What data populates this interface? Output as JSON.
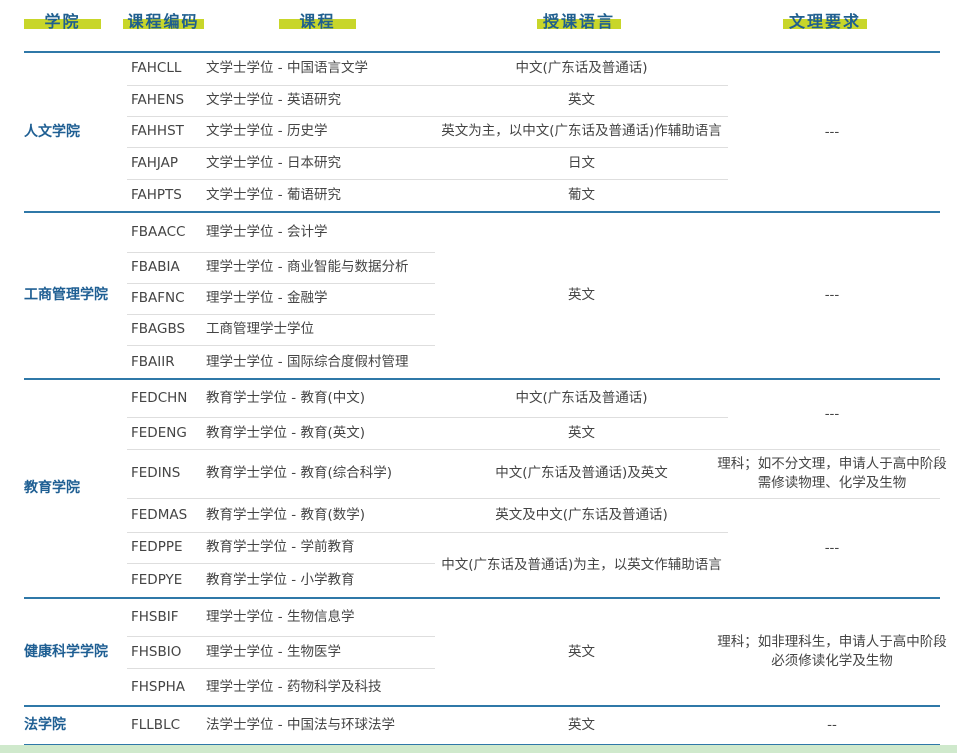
{
  "headers": {
    "faculty": "学院",
    "code": "课程编码",
    "course": "课程",
    "language": "授课语言",
    "requirement": "文理要求"
  },
  "colors": {
    "accent_blue": "#2f78a8",
    "header_highlight": "#c8d62a",
    "faculty_text": "#1f5f93"
  },
  "faculties": [
    {
      "name": "人文学院",
      "courses": [
        {
          "code": "FAHCLL",
          "course": "文学士学位 - 中国语言文学"
        },
        {
          "code": "FAHENS",
          "course": "文学士学位 - 英语研究"
        },
        {
          "code": "FAHHST",
          "course": "文学士学位 - 历史学"
        },
        {
          "code": "FAHJAP",
          "course": "文学士学位 - 日本研究"
        },
        {
          "code": "FAHPTS",
          "course": "文学士学位 - 葡语研究"
        }
      ],
      "languages": [
        "中文(广东话及普通话)",
        "英文",
        "英文为主，以中文(广东话及普通话)作辅助语言",
        "日文",
        "葡文"
      ],
      "requirements": [
        "---"
      ]
    },
    {
      "name": "工商管理学院",
      "courses": [
        {
          "code": "FBAACC",
          "course": "理学士学位 - 会计学"
        },
        {
          "code": "FBABIA",
          "course": "理学士学位 - 商业智能与数据分析"
        },
        {
          "code": "FBAFNC",
          "course": "理学士学位 - 金融学"
        },
        {
          "code": "FBAGBS",
          "course": "工商管理学士学位"
        },
        {
          "code": "FBAIIR",
          "course": "理学士学位 - 国际综合度假村管理"
        }
      ],
      "languages": [
        "英文"
      ],
      "requirements": [
        "---"
      ]
    },
    {
      "name": "教育学院",
      "courses": [
        {
          "code": "FEDCHN",
          "course": "教育学士学位 - 教育(中文)"
        },
        {
          "code": "FEDENG",
          "course": "教育学士学位 - 教育(英文)"
        },
        {
          "code": "FEDINS",
          "course": "教育学士学位 - 教育(综合科学)"
        },
        {
          "code": "FEDMAS",
          "course": "教育学士学位 - 教育(数学)"
        },
        {
          "code": "FEDPPE",
          "course": "教育学士学位 - 学前教育"
        },
        {
          "code": "FEDPYE",
          "course": "教育学士学位 - 小学教育"
        }
      ],
      "languages": [
        "中文(广东话及普通话)",
        "英文",
        "中文(广东话及普通话)及英文",
        "英文及中文(广东话及普通话)",
        "中文(广东话及普通话)为主，以英文作辅助语言"
      ],
      "requirements": [
        "---",
        "理科；如不分文理，申请人于高中阶段需修读物理、化学及生物",
        "---"
      ]
    },
    {
      "name": "健康科学学院",
      "courses": [
        {
          "code": "FHSBIF",
          "course": "理学士学位 - 生物信息学"
        },
        {
          "code": "FHSBIO",
          "course": "理学士学位 - 生物医学"
        },
        {
          "code": "FHSPHA",
          "course": "理学士学位 - 药物科学及科技"
        }
      ],
      "languages": [
        "英文"
      ],
      "requirements": [
        "理科；如非理科生，申请人于高中阶段必须修读化学及生物"
      ]
    },
    {
      "name": "法学院",
      "courses": [
        {
          "code": "FLLBLC",
          "course": "法学士学位 - 中国法与环球法学"
        }
      ],
      "languages": [
        "英文"
      ],
      "requirements": [
        "--"
      ]
    }
  ]
}
